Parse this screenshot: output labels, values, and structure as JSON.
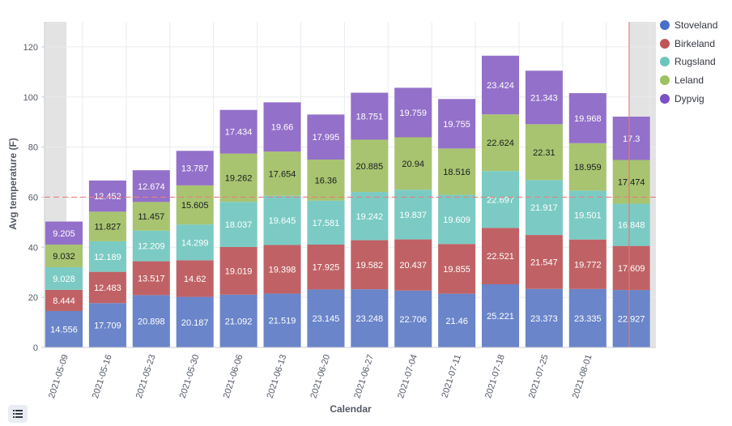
{
  "chart_data": {
    "type": "bar",
    "stacked": true,
    "xlabel": "Calendar",
    "ylabel": "Avg temperature (F)",
    "ylim": [
      0,
      130
    ],
    "yticks": [
      0,
      20,
      40,
      60,
      80,
      100,
      120
    ],
    "grid": true,
    "legend_position": "right",
    "threshold_line": 60,
    "categories": [
      "2021-05-09",
      "2021-05-16",
      "2021-05-23",
      "2021-05-30",
      "2021-06-06",
      "2021-06-13",
      "2021-06-20",
      "2021-06-27",
      "2021-07-04",
      "2021-07-11",
      "2021-07-18",
      "2021-07-25",
      "2021-08-01",
      ""
    ],
    "series": [
      {
        "name": "Stoveland",
        "color": "#6a85c9",
        "values": [
          14.556,
          17.709,
          20.898,
          20.187,
          21.092,
          21.519,
          23.145,
          23.248,
          22.706,
          21.46,
          25.221,
          23.373,
          23.335,
          22.927
        ]
      },
      {
        "name": "Birkeland",
        "color": "#c06265",
        "values": [
          8.444,
          12.483,
          13.517,
          14.62,
          19.019,
          19.398,
          17.925,
          19.582,
          20.437,
          19.855,
          22.521,
          21.547,
          19.772,
          17.609
        ]
      },
      {
        "name": "Rugsland",
        "color": "#7bcbc4",
        "values": [
          9.028,
          12.189,
          12.209,
          14.299,
          18.037,
          19.645,
          17.581,
          19.242,
          19.837,
          19.609,
          22.697,
          21.917,
          19.501,
          16.848
        ]
      },
      {
        "name": "Leland",
        "color": "#a8c470",
        "values": [
          9.032,
          11.827,
          11.457,
          15.605,
          19.262,
          17.654,
          16.36,
          20.885,
          20.94,
          18.516,
          22.624,
          22.31,
          18.959,
          17.474
        ]
      },
      {
        "name": "Dypvig",
        "color": "#9370c9",
        "values": [
          9.205,
          12.452,
          12.674,
          13.787,
          17.434,
          19.66,
          17.995,
          18.751,
          19.759,
          19.755,
          23.424,
          21.343,
          19.968,
          17.3
        ]
      }
    ]
  },
  "legend": {
    "swatch_colors": [
      "#4a6fc9",
      "#c05456",
      "#6cc5bd",
      "#9bc25d",
      "#7a50c4"
    ]
  },
  "icons": {
    "legend_toggle": "list-icon"
  }
}
